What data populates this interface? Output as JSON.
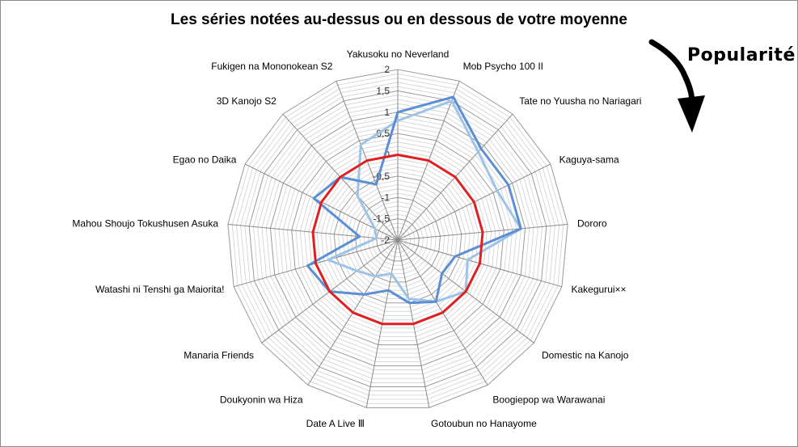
{
  "chart_data": {
    "type": "radar",
    "title": "Les séries notées au-dessus ou en dessous de votre moyenne",
    "annotation": "Popularité",
    "categories": [
      "Yakusoku no Neverland",
      "Mob Psycho 100 II",
      "Tate no Yuusha no Nariagari",
      "Kaguya-sama",
      "Dororo",
      "Kakegurui××",
      "Domestic na Kanojo",
      "Boogiepop wa Warawanai",
      "Gotoubun no Hanayome",
      "Date A Live Ⅲ",
      "Doukyonin wa Hiza",
      "Manaria Friends",
      "Watashi ni Tenshi ga Maiorita!",
      "Mahou Shoujo Tokushusen Asuka",
      "Egao no Daika",
      "3D Kanojo S2",
      "Fukigen na Mononokean S2"
    ],
    "rlim": [
      -2,
      2
    ],
    "ticks": [
      "2",
      "1,5",
      "1",
      "0,5",
      "0",
      "-0,5",
      "-1",
      "-1,5",
      "-2"
    ],
    "grid": true,
    "series": [
      {
        "color": "#9dc3e6",
        "values": [
          0.8,
          1.5,
          0.8,
          0.6,
          0.9,
          -0.3,
          0.0,
          -0.3,
          -0.6,
          -1.2,
          -1.0,
          -0.8,
          -0.3,
          -1.5,
          -1.4,
          -0.6,
          0.4
        ]
      },
      {
        "color": "#5b8fd4",
        "values": [
          1.0,
          1.6,
          0.9,
          0.9,
          0.9,
          -0.6,
          -0.7,
          -0.3,
          -0.5,
          -0.8,
          -0.5,
          0.0,
          0.2,
          -1.1,
          0.2,
          0.0,
          -0.6
        ]
      },
      {
        "color": "#e02020",
        "values": [
          0,
          0,
          0,
          0,
          0,
          0,
          0,
          0,
          0,
          0,
          0,
          0,
          0,
          0,
          0,
          0,
          0
        ]
      }
    ]
  }
}
